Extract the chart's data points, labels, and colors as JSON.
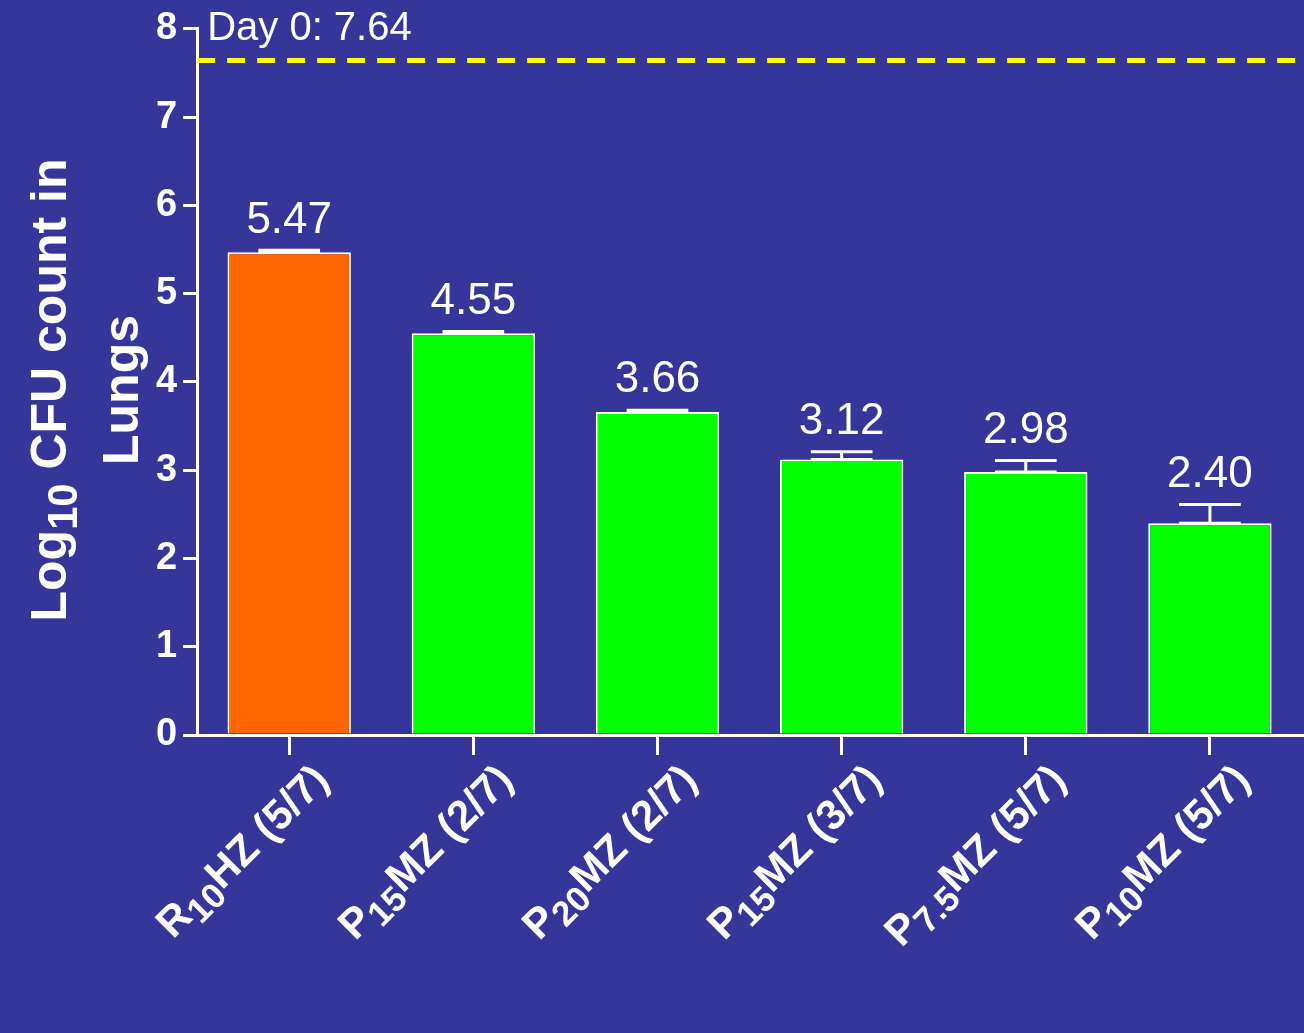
{
  "chart_data": {
    "type": "bar",
    "ylabel": "Log$_{10}$ CFU count in Lungs",
    "categories": [
      "R$_{10}$HZ (5/7)",
      "P$_{15}$MZ (2/7)",
      "P$_{20}$MZ (2/7)",
      "P$_{15}$MZ (3/7)",
      "P$_{7.5}$MZ (5/7)",
      "P$_{10}$MZ (5/7)"
    ],
    "values": [
      5.47,
      4.55,
      3.66,
      3.12,
      2.98,
      2.4
    ],
    "colors": [
      "#ff6600",
      "#00ff00",
      "#00ff00",
      "#00ff00",
      "#00ff00",
      "#00ff00"
    ],
    "errors": [
      [
        5.47,
        5.49
      ],
      [
        4.55,
        4.57
      ],
      [
        3.66,
        3.68
      ],
      [
        3.12,
        3.21
      ],
      [
        2.98,
        3.11
      ],
      [
        2.4,
        2.61
      ]
    ],
    "value_labels": [
      "5.47",
      "4.55",
      "3.66",
      "3.12",
      "2.98",
      "2.40"
    ],
    "ylim": [
      0,
      8
    ],
    "yticks": [
      0,
      1,
      2,
      3,
      4,
      5,
      6,
      7,
      8
    ],
    "ref_lines": [
      {
        "axis": "y",
        "value": 7.64,
        "label": "Day 0: 7.64",
        "color": "#ffff00",
        "line_style": "dashed"
      }
    ],
    "grid": false,
    "legend": false
  }
}
